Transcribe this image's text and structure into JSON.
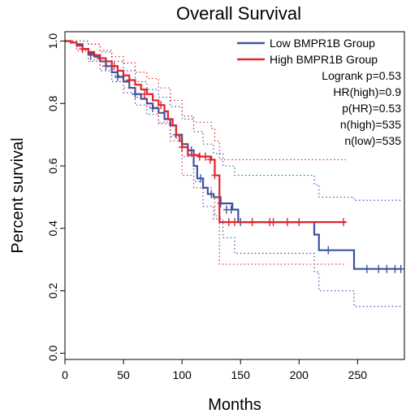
{
  "chart_data": {
    "type": "line",
    "title": "Overall Survival",
    "xlabel": "Months",
    "ylabel": "Percent survival",
    "xlim": [
      0,
      290
    ],
    "ylim": [
      -0.02,
      1.03
    ],
    "xticks": [
      0,
      50,
      100,
      150,
      200,
      250
    ],
    "yticks": [
      0.0,
      0.2,
      0.4,
      0.6,
      0.8,
      1.0
    ],
    "xtick_labels": [
      "0",
      "50",
      "100",
      "150",
      "200",
      "250"
    ],
    "ytick_labels": [
      "0.0",
      "0.2",
      "0.4",
      "0.6",
      "0.8",
      "1.0"
    ],
    "grid": false,
    "legend_position": "top-right",
    "series": [
      {
        "name": "Low BMPR1B Group",
        "color": "#3a53a4",
        "steps": [
          [
            0,
            1.0
          ],
          [
            5,
            0.995
          ],
          [
            10,
            0.99
          ],
          [
            15,
            0.975
          ],
          [
            20,
            0.96
          ],
          [
            25,
            0.95
          ],
          [
            30,
            0.935
          ],
          [
            35,
            0.92
          ],
          [
            40,
            0.9
          ],
          [
            45,
            0.885
          ],
          [
            50,
            0.87
          ],
          [
            55,
            0.85
          ],
          [
            60,
            0.83
          ],
          [
            65,
            0.815
          ],
          [
            70,
            0.8
          ],
          [
            75,
            0.785
          ],
          [
            80,
            0.77
          ],
          [
            85,
            0.75
          ],
          [
            90,
            0.73
          ],
          [
            95,
            0.7
          ],
          [
            100,
            0.67
          ],
          [
            105,
            0.65
          ],
          [
            110,
            0.6
          ],
          [
            113,
            0.56
          ],
          [
            118,
            0.53
          ],
          [
            122,
            0.51
          ],
          [
            127,
            0.5
          ],
          [
            133,
            0.48
          ],
          [
            143,
            0.46
          ],
          [
            148,
            0.42
          ],
          [
            213,
            0.38
          ],
          [
            217,
            0.33
          ],
          [
            247,
            0.27
          ],
          [
            287,
            0.27
          ]
        ],
        "upper": [
          [
            0,
            1.0
          ],
          [
            10,
            1.0
          ],
          [
            20,
            0.99
          ],
          [
            30,
            0.965
          ],
          [
            40,
            0.935
          ],
          [
            50,
            0.905
          ],
          [
            60,
            0.87
          ],
          [
            70,
            0.845
          ],
          [
            80,
            0.82
          ],
          [
            90,
            0.79
          ],
          [
            100,
            0.75
          ],
          [
            110,
            0.71
          ],
          [
            118,
            0.67
          ],
          [
            127,
            0.64
          ],
          [
            135,
            0.6
          ],
          [
            145,
            0.57
          ],
          [
            213,
            0.54
          ],
          [
            217,
            0.5
          ],
          [
            247,
            0.49
          ],
          [
            287,
            0.49
          ]
        ],
        "lower": [
          [
            0,
            1.0
          ],
          [
            10,
            0.975
          ],
          [
            20,
            0.935
          ],
          [
            30,
            0.905
          ],
          [
            40,
            0.87
          ],
          [
            50,
            0.835
          ],
          [
            60,
            0.795
          ],
          [
            70,
            0.765
          ],
          [
            80,
            0.735
          ],
          [
            90,
            0.695
          ],
          [
            100,
            0.63
          ],
          [
            110,
            0.55
          ],
          [
            118,
            0.47
          ],
          [
            127,
            0.43
          ],
          [
            135,
            0.37
          ],
          [
            145,
            0.32
          ],
          [
            213,
            0.26
          ],
          [
            217,
            0.2
          ],
          [
            247,
            0.15
          ],
          [
            287,
            0.15
          ]
        ],
        "censored": [
          [
            22,
            0.955
          ],
          [
            35,
            0.92
          ],
          [
            45,
            0.885
          ],
          [
            60,
            0.83
          ],
          [
            75,
            0.785
          ],
          [
            95,
            0.7
          ],
          [
            108,
            0.65
          ],
          [
            116,
            0.56
          ],
          [
            125,
            0.51
          ],
          [
            133,
            0.48
          ],
          [
            138,
            0.46
          ],
          [
            142,
            0.46
          ],
          [
            150,
            0.42
          ],
          [
            225,
            0.33
          ],
          [
            258,
            0.27
          ],
          [
            268,
            0.27
          ],
          [
            275,
            0.27
          ],
          [
            282,
            0.27
          ],
          [
            287,
            0.27
          ]
        ]
      },
      {
        "name": "High BMPR1B Group",
        "color": "#e0242b",
        "steps": [
          [
            0,
            1.0
          ],
          [
            5,
            0.995
          ],
          [
            10,
            0.985
          ],
          [
            15,
            0.975
          ],
          [
            20,
            0.965
          ],
          [
            25,
            0.955
          ],
          [
            30,
            0.945
          ],
          [
            35,
            0.935
          ],
          [
            40,
            0.92
          ],
          [
            45,
            0.905
          ],
          [
            50,
            0.89
          ],
          [
            55,
            0.875
          ],
          [
            60,
            0.86
          ],
          [
            65,
            0.845
          ],
          [
            70,
            0.83
          ],
          [
            75,
            0.81
          ],
          [
            80,
            0.795
          ],
          [
            85,
            0.775
          ],
          [
            88,
            0.75
          ],
          [
            92,
            0.73
          ],
          [
            95,
            0.7
          ],
          [
            98,
            0.68
          ],
          [
            100,
            0.66
          ],
          [
            105,
            0.635
          ],
          [
            115,
            0.63
          ],
          [
            125,
            0.62
          ],
          [
            128,
            0.57
          ],
          [
            132,
            0.42
          ],
          [
            240,
            0.42
          ]
        ],
        "upper": [
          [
            0,
            1.0
          ],
          [
            10,
            1.0
          ],
          [
            20,
            0.99
          ],
          [
            30,
            0.97
          ],
          [
            40,
            0.95
          ],
          [
            50,
            0.93
          ],
          [
            60,
            0.9
          ],
          [
            70,
            0.88
          ],
          [
            80,
            0.85
          ],
          [
            90,
            0.81
          ],
          [
            100,
            0.76
          ],
          [
            110,
            0.74
          ],
          [
            125,
            0.72
          ],
          [
            128,
            0.68
          ],
          [
            132,
            0.62
          ],
          [
            240,
            0.62
          ]
        ],
        "lower": [
          [
            0,
            1.0
          ],
          [
            10,
            0.97
          ],
          [
            20,
            0.94
          ],
          [
            30,
            0.92
          ],
          [
            40,
            0.89
          ],
          [
            50,
            0.85
          ],
          [
            60,
            0.82
          ],
          [
            70,
            0.79
          ],
          [
            80,
            0.74
          ],
          [
            90,
            0.68
          ],
          [
            100,
            0.57
          ],
          [
            110,
            0.53
          ],
          [
            125,
            0.5
          ],
          [
            128,
            0.44
          ],
          [
            132,
            0.285
          ],
          [
            240,
            0.285
          ]
        ],
        "censored": [
          [
            15,
            0.975
          ],
          [
            30,
            0.945
          ],
          [
            42,
            0.92
          ],
          [
            55,
            0.875
          ],
          [
            68,
            0.83
          ],
          [
            82,
            0.795
          ],
          [
            100,
            0.66
          ],
          [
            110,
            0.635
          ],
          [
            115,
            0.63
          ],
          [
            120,
            0.63
          ],
          [
            124,
            0.62
          ],
          [
            128,
            0.57
          ],
          [
            140,
            0.42
          ],
          [
            145,
            0.42
          ],
          [
            160,
            0.42
          ],
          [
            175,
            0.42
          ],
          [
            178,
            0.42
          ],
          [
            190,
            0.42
          ],
          [
            200,
            0.42
          ],
          [
            238,
            0.42
          ]
        ]
      }
    ],
    "annotations": [
      "Logrank p=0.53",
      "HR(high)=0.9",
      "p(HR)=0.53",
      "n(high)=535",
      "n(low)=535"
    ]
  }
}
